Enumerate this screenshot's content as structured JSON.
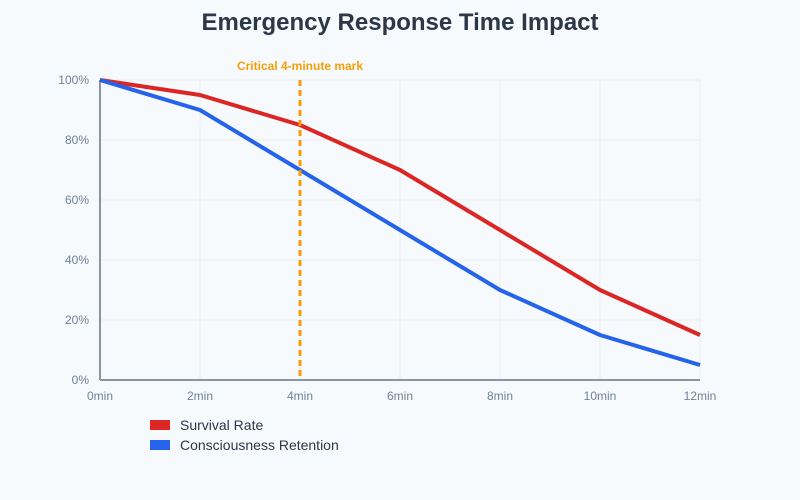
{
  "chart_data": {
    "type": "line",
    "title": "Emergency Response Time Impact",
    "x": [
      0,
      2,
      4,
      6,
      8,
      10,
      12
    ],
    "x_tick_labels": [
      "0min",
      "2min",
      "4min",
      "6min",
      "8min",
      "10min",
      "12min"
    ],
    "y_tick_labels": [
      "0%",
      "20%",
      "40%",
      "60%",
      "80%",
      "100%"
    ],
    "y_ticks": [
      0,
      20,
      40,
      60,
      80,
      100
    ],
    "xlim": [
      0,
      12
    ],
    "ylim": [
      0,
      100
    ],
    "grid": true,
    "legend_placement": "bottom-left",
    "series": [
      {
        "name": "Survival Rate",
        "color": "#dc2626",
        "values": [
          100,
          95,
          85,
          70,
          50,
          30,
          15
        ]
      },
      {
        "name": "Consciousness Retention",
        "color": "#2563eb",
        "values": [
          100,
          90,
          70,
          50,
          30,
          15,
          5
        ]
      }
    ],
    "annotations": [
      {
        "text": "Critical 4-minute mark",
        "x": 4,
        "color": "#f59e0b",
        "style": "dashed vertical line"
      }
    ]
  }
}
